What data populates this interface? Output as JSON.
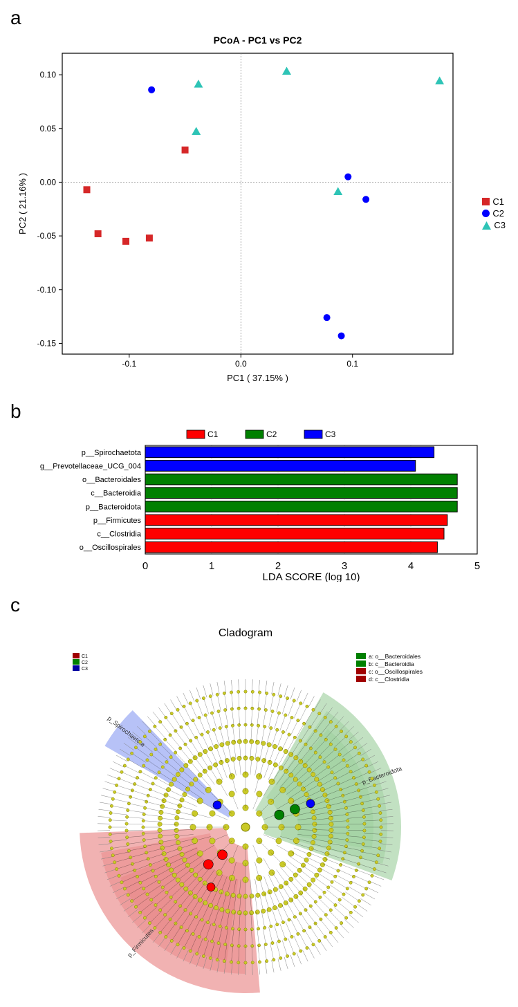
{
  "panelA": {
    "label": "a",
    "title": "PCoA - PC1 vs PC2",
    "title_fontsize": 14,
    "xlabel": "PC1 ( 37.15% )",
    "ylabel": "PC2 ( 21.16% )",
    "label_fontsize": 13,
    "xlim": [
      -0.16,
      0.19
    ],
    "ylim": [
      -0.16,
      0.12
    ],
    "xticks": [
      -0.1,
      0.0,
      0.1
    ],
    "yticks": [
      -0.15,
      -0.1,
      -0.05,
      0.0,
      0.05,
      0.1
    ],
    "grid_color": "#808080",
    "grid_dash": "2,2",
    "background_color": "#ffffff",
    "frame_color": "#000000",
    "series": [
      {
        "name": "C1",
        "marker": "square",
        "color": "#d62728",
        "size": 10,
        "points": [
          [
            -0.138,
            -0.007
          ],
          [
            -0.128,
            -0.048
          ],
          [
            -0.103,
            -0.055
          ],
          [
            -0.082,
            -0.052
          ],
          [
            -0.05,
            0.03
          ]
        ]
      },
      {
        "name": "C2",
        "marker": "circle",
        "color": "#0000ff",
        "size": 10,
        "points": [
          [
            -0.08,
            0.086
          ],
          [
            0.096,
            0.005
          ],
          [
            0.112,
            -0.016
          ],
          [
            0.077,
            -0.126
          ],
          [
            0.09,
            -0.143
          ]
        ]
      },
      {
        "name": "C3",
        "marker": "triangle",
        "color": "#2ec4b6",
        "size": 11,
        "points": [
          [
            -0.038,
            0.091
          ],
          [
            -0.04,
            0.047
          ],
          [
            0.041,
            0.103
          ],
          [
            0.087,
            -0.009
          ],
          [
            0.178,
            0.094
          ]
        ]
      }
    ],
    "legend": [
      "C1",
      "C2",
      "C3"
    ]
  },
  "panelB": {
    "label": "b",
    "xlabel": "LDA SCORE (log 10)",
    "label_fontsize": 15,
    "tick_fontsize": 15,
    "cat_fontsize": 11,
    "xlim": [
      0,
      5
    ],
    "xticks": [
      0,
      1,
      2,
      3,
      4,
      5
    ],
    "grid_color": "#bfbfbf",
    "grid_dash": "1,2",
    "frame_color": "#000000",
    "legend": [
      {
        "name": "C1",
        "color": "#ff0000"
      },
      {
        "name": "C2",
        "color": "#008000"
      },
      {
        "name": "C3",
        "color": "#0000ff"
      }
    ],
    "bars": [
      {
        "label": "p__Spirochaetota",
        "value": 4.35,
        "color": "#0000ff"
      },
      {
        "label": "g__Prevotellaceae_UCG_004",
        "value": 4.07,
        "color": "#0000ff"
      },
      {
        "label": "o__Bacteroidales",
        "value": 4.7,
        "color": "#008000"
      },
      {
        "label": "c__Bacteroidia",
        "value": 4.7,
        "color": "#008000"
      },
      {
        "label": "p__Bacteroidota",
        "value": 4.7,
        "color": "#008000"
      },
      {
        "label": "p__Firmicutes",
        "value": 4.55,
        "color": "#ff0000"
      },
      {
        "label": "c__Clostridia",
        "value": 4.5,
        "color": "#ff0000"
      },
      {
        "label": "o__Oscillospirales",
        "value": 4.4,
        "color": "#ff0000"
      }
    ],
    "bar_edge": "#000000",
    "bar_height": 0.8
  },
  "panelC": {
    "label": "c",
    "title": "Cladogram",
    "title_fontsize": 16,
    "node_color": "#c9c928",
    "node_stroke": "#808000",
    "edge_color": "#000000",
    "rings": [
      28,
      52,
      76,
      100,
      124,
      148,
      172,
      196
    ],
    "ring_counts": [
      8,
      16,
      24,
      70,
      90,
      100,
      110,
      120
    ],
    "outer_tick_count": 130,
    "outer_tick_color": "#808080",
    "sectors": [
      {
        "label": "p_Bacteroidota",
        "color": "#8fc98f",
        "opacity": 0.55,
        "start_deg": 30,
        "end_deg": 110,
        "r_in": 28,
        "r_out": 225,
        "inner": [
          {
            "label": "b",
            "opacity": 0.35,
            "start_deg": 35,
            "end_deg": 105,
            "r_in": 52,
            "r_out": 205
          },
          {
            "label": "a",
            "opacity": 0.3,
            "start_deg": 40,
            "end_deg": 100,
            "r_in": 76,
            "r_out": 185
          }
        ]
      },
      {
        "label": "p_Firmicutes",
        "color": "#e57373",
        "opacity": 0.55,
        "start_deg": 175,
        "end_deg": 268,
        "r_in": 28,
        "r_out": 240,
        "inner": [
          {
            "label": "d",
            "opacity": 0.35,
            "start_deg": 180,
            "end_deg": 260,
            "r_in": 52,
            "r_out": 212
          },
          {
            "label": "c",
            "opacity": 0.3,
            "start_deg": 188,
            "end_deg": 248,
            "r_in": 76,
            "r_out": 195
          }
        ]
      },
      {
        "label": "p_Spirochaetota",
        "color": "#7c8ff0",
        "opacity": 0.55,
        "start_deg": 300,
        "end_deg": 316,
        "r_in": 28,
        "r_out": 235,
        "inner": []
      }
    ],
    "highlight_nodes": [
      {
        "color": "#008000",
        "angle_deg": 70,
        "r": 52,
        "size": 7
      },
      {
        "color": "#008000",
        "angle_deg": 70,
        "r": 76,
        "size": 7
      },
      {
        "color": "#0000ff",
        "angle_deg": 70,
        "r": 100,
        "size": 6
      },
      {
        "color": "#ff0000",
        "angle_deg": 220,
        "r": 52,
        "size": 7
      },
      {
        "color": "#ff0000",
        "angle_deg": 225,
        "r": 76,
        "size": 7
      },
      {
        "color": "#ff0000",
        "angle_deg": 210,
        "r": 100,
        "size": 6
      },
      {
        "color": "#0000ff",
        "angle_deg": 308,
        "r": 52,
        "size": 6
      }
    ],
    "legend_left": [
      {
        "name": "C1",
        "color": "#a00000"
      },
      {
        "name": "C2",
        "color": "#008000"
      },
      {
        "name": "C3",
        "color": "#0000a0"
      }
    ],
    "legend_right": [
      {
        "code": "a",
        "text": "a: o__Bacteroidales",
        "color": "#008000"
      },
      {
        "code": "b",
        "text": "b: c__Bacteroidia",
        "color": "#008000"
      },
      {
        "code": "c",
        "text": "c: o__Oscillospirales",
        "color": "#a00000"
      },
      {
        "code": "d",
        "text": "d: c__Clostridia",
        "color": "#a00000"
      }
    ]
  }
}
